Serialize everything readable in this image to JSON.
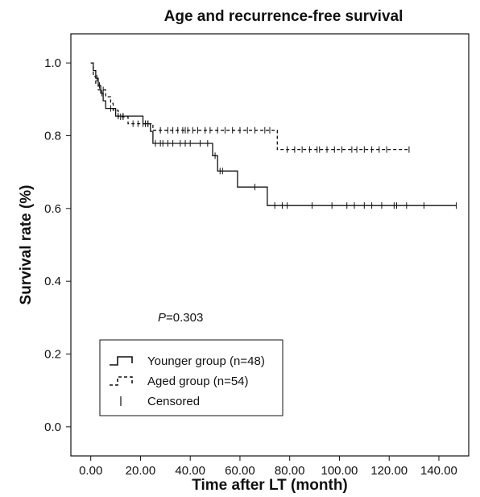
{
  "chart_data": {
    "type": "line",
    "title": "Age and recurrence-free survival",
    "xlabel": "Time after LT (month)",
    "ylabel": "Survival rate (%)",
    "xlim": [
      -8,
      152
    ],
    "ylim": [
      -0.08,
      1.08
    ],
    "x_ticks": [
      0,
      20,
      40,
      60,
      80,
      100,
      120,
      140
    ],
    "x_tick_labels": [
      "0.00",
      "20.00",
      "40.00",
      "60.00",
      "80.00",
      "100.00",
      "120.00",
      "140.00"
    ],
    "y_ticks": [
      0.0,
      0.2,
      0.4,
      0.6,
      0.8,
      1.0
    ],
    "y_tick_labels": [
      "0.0",
      "0.2",
      "0.4",
      "0.6",
      "0.8",
      "1.0"
    ],
    "grid": false,
    "annotation": {
      "prefix": "P",
      "text": "=0.303"
    },
    "legend": {
      "position": "bottom-left",
      "entries": [
        {
          "label": "Younger group (n=48)",
          "style": "solid"
        },
        {
          "label": "Aged group (n=54)",
          "style": "dashed"
        },
        {
          "label": "Censored",
          "style": "tick"
        }
      ]
    },
    "series": [
      {
        "name": "Younger group (n=48)",
        "style": "solid",
        "steps": [
          [
            0,
            1.0
          ],
          [
            1,
            0.979
          ],
          [
            2,
            0.958
          ],
          [
            3,
            0.938
          ],
          [
            4,
            0.917
          ],
          [
            5,
            0.896
          ],
          [
            6,
            0.875
          ],
          [
            10,
            0.854
          ],
          [
            21,
            0.833
          ],
          [
            24,
            0.812
          ],
          [
            25,
            0.779
          ],
          [
            49,
            0.745
          ],
          [
            51,
            0.703
          ],
          [
            59,
            0.659
          ],
          [
            71,
            0.608
          ],
          [
            147,
            0.608
          ]
        ],
        "censored": [
          [
            2.5,
            0.958
          ],
          [
            3.5,
            0.938
          ],
          [
            4.5,
            0.917
          ],
          [
            8,
            0.875
          ],
          [
            11,
            0.854
          ],
          [
            13,
            0.854
          ],
          [
            22,
            0.833
          ],
          [
            23,
            0.833
          ],
          [
            26,
            0.779
          ],
          [
            28,
            0.779
          ],
          [
            29,
            0.779
          ],
          [
            31,
            0.779
          ],
          [
            33,
            0.779
          ],
          [
            36,
            0.779
          ],
          [
            38,
            0.779
          ],
          [
            40,
            0.779
          ],
          [
            44,
            0.779
          ],
          [
            47,
            0.779
          ],
          [
            50,
            0.745
          ],
          [
            52,
            0.703
          ],
          [
            53,
            0.703
          ],
          [
            66,
            0.659
          ],
          [
            74,
            0.608
          ],
          [
            77,
            0.608
          ],
          [
            79,
            0.608
          ],
          [
            89,
            0.608
          ],
          [
            97,
            0.608
          ],
          [
            103,
            0.608
          ],
          [
            106,
            0.608
          ],
          [
            110,
            0.608
          ],
          [
            113,
            0.608
          ],
          [
            117,
            0.608
          ],
          [
            122,
            0.608
          ],
          [
            123,
            0.608
          ],
          [
            127,
            0.608
          ],
          [
            134,
            0.608
          ],
          [
            147,
            0.608
          ]
        ]
      },
      {
        "name": "Aged group (n=54)",
        "style": "dashed",
        "steps": [
          [
            0,
            1.0
          ],
          [
            1,
            0.963
          ],
          [
            2,
            0.944
          ],
          [
            3,
            0.926
          ],
          [
            6,
            0.907
          ],
          [
            8,
            0.889
          ],
          [
            9,
            0.87
          ],
          [
            11,
            0.852
          ],
          [
            15,
            0.833
          ],
          [
            25,
            0.815
          ],
          [
            75,
            0.762
          ],
          [
            128,
            0.762
          ]
        ],
        "censored": [
          [
            4,
            0.926
          ],
          [
            5,
            0.926
          ],
          [
            12,
            0.852
          ],
          [
            13,
            0.852
          ],
          [
            17,
            0.833
          ],
          [
            19,
            0.833
          ],
          [
            21,
            0.833
          ],
          [
            22,
            0.833
          ],
          [
            23,
            0.833
          ],
          [
            28,
            0.815
          ],
          [
            31,
            0.815
          ],
          [
            33,
            0.815
          ],
          [
            35,
            0.815
          ],
          [
            37,
            0.815
          ],
          [
            38,
            0.815
          ],
          [
            39,
            0.815
          ],
          [
            41,
            0.815
          ],
          [
            43,
            0.815
          ],
          [
            46,
            0.815
          ],
          [
            48,
            0.815
          ],
          [
            51,
            0.815
          ],
          [
            54,
            0.815
          ],
          [
            57,
            0.815
          ],
          [
            60,
            0.815
          ],
          [
            63,
            0.815
          ],
          [
            66,
            0.815
          ],
          [
            70,
            0.815
          ],
          [
            72,
            0.815
          ],
          [
            79,
            0.762
          ],
          [
            82,
            0.762
          ],
          [
            85,
            0.762
          ],
          [
            88,
            0.762
          ],
          [
            91,
            0.762
          ],
          [
            92,
            0.762
          ],
          [
            95,
            0.762
          ],
          [
            98,
            0.762
          ],
          [
            101,
            0.762
          ],
          [
            105,
            0.762
          ],
          [
            107,
            0.762
          ],
          [
            110,
            0.762
          ],
          [
            113,
            0.762
          ],
          [
            116,
            0.762
          ],
          [
            119,
            0.762
          ],
          [
            128,
            0.762
          ]
        ]
      }
    ]
  }
}
